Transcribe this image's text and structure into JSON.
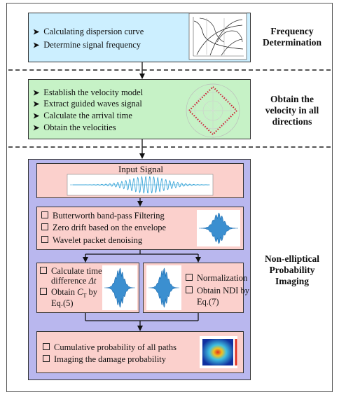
{
  "sections": [
    {
      "label": "Frequency\nDetermination",
      "label_line1": "Frequency",
      "label_line2": "Determination",
      "steps": [
        "Calculating dispersion curve",
        "Determine signal frequency"
      ]
    },
    {
      "label_line1": "Obtain the",
      "label_line2": "velocity in all",
      "label_line3": "directions",
      "steps": [
        "Establish the velocity model",
        "Extract  guided waves signal",
        "Calculate  the arrival time",
        "Obtain the velocities"
      ]
    },
    {
      "label_line1": "Non-elliptical",
      "label_line2": "Probability",
      "label_line3": "Imaging"
    }
  ],
  "imaging": {
    "input_title": "Input Signal",
    "filter_steps": [
      "Butterworth band-pass Filtering",
      "Zero drift based on the envelope",
      "Wavelet packet denoising"
    ],
    "left_steps": {
      "line1": "Calculate time",
      "line2a": "difference ",
      "line2b": "Δt",
      "line3a": "Obtain ",
      "line3b": "C",
      "line3c": "T",
      "line3d": " by",
      "line4": "Eq.(5)"
    },
    "right_steps": {
      "line1": "Normalization",
      "line2": "Obtain NDI by",
      "line3": "Eq.(7)"
    },
    "final_steps": [
      "Cumulative probability of all paths",
      "Imaging the damage probability"
    ]
  },
  "colors": {
    "cyan": "#ccefff",
    "green": "#c6f2c6",
    "lavender": "#b9b7ee",
    "pink": "#fbd0cc",
    "signal": "#2a9fd6",
    "polar_marker": "#cc2233"
  },
  "icons": {
    "bullet_arrow": "arrow-bullet-icon",
    "bullet_box": "checkbox-bullet-icon"
  }
}
